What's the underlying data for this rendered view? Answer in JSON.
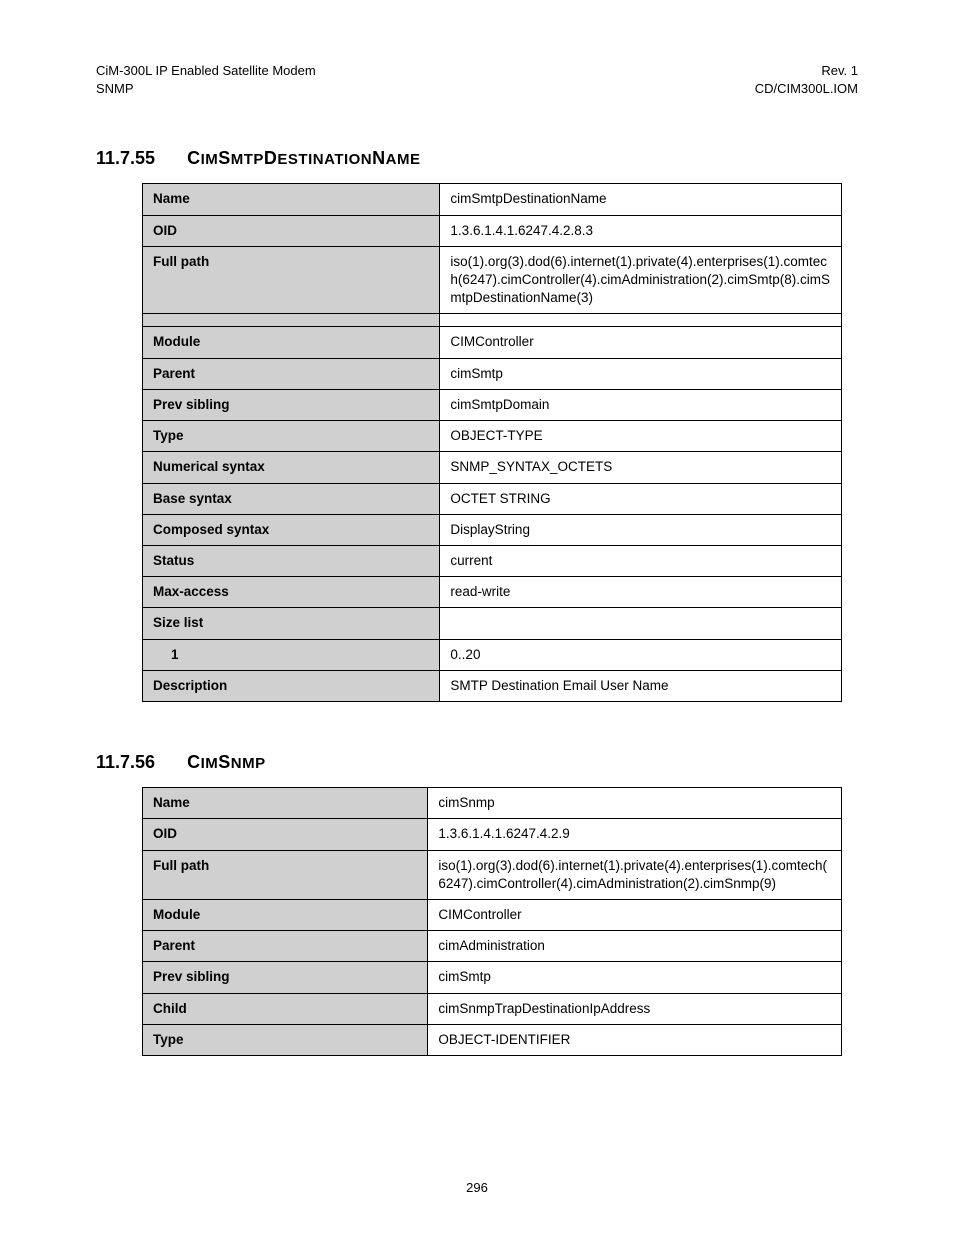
{
  "header": {
    "left_line1": "CiM-300L IP Enabled Satellite Modem",
    "left_line2": "SNMP",
    "right_line1": "Rev. 1",
    "right_line2": "CD/CIM300L.IOM"
  },
  "sections": [
    {
      "number": "11.7.55",
      "title_parts": [
        {
          "t": "C",
          "cls": "sc-upper"
        },
        {
          "t": "IM",
          "cls": "sc-lower"
        },
        {
          "t": "S",
          "cls": "sc-upper"
        },
        {
          "t": "MTP",
          "cls": "sc-lower"
        },
        {
          "t": "D",
          "cls": "sc-upper"
        },
        {
          "t": "ESTINATION",
          "cls": "sc-lower"
        },
        {
          "t": "N",
          "cls": "sc-upper"
        },
        {
          "t": "AME",
          "cls": "sc-lower"
        }
      ],
      "rows": [
        {
          "label": "Name",
          "value": "cimSmtpDestinationName"
        },
        {
          "label": "OID",
          "value": "1.3.6.1.4.1.6247.4.2.8.3"
        },
        {
          "label": "Full path",
          "value": "iso(1).org(3).dod(6).internet(1).private(4).enterprises(1).comtech(6247).cimController(4).cimAdministration(2).cimSmtp(8).cimSmtpDestinationName(3)"
        },
        {
          "label": "",
          "value": ""
        },
        {
          "label": "Module",
          "value": "CIMController"
        },
        {
          "label": "Parent",
          "value": "cimSmtp"
        },
        {
          "label": "Prev sibling",
          "value": "cimSmtpDomain"
        },
        {
          "label": "Type",
          "value": "OBJECT-TYPE"
        },
        {
          "label": "Numerical syntax",
          "value": "SNMP_SYNTAX_OCTETS"
        },
        {
          "label": "Base syntax",
          "value": "OCTET STRING"
        },
        {
          "label": "Composed syntax",
          "value": "DisplayString"
        },
        {
          "label": "Status",
          "value": "current"
        },
        {
          "label": "Max-access",
          "value": "read-write"
        },
        {
          "label": "Size list",
          "value": ""
        },
        {
          "label": "1",
          "value": "0..20",
          "indent": true
        },
        {
          "label": "Description",
          "value": "SMTP Destination Email User Name"
        }
      ]
    },
    {
      "number": "11.7.56",
      "title_parts": [
        {
          "t": "C",
          "cls": "sc-upper"
        },
        {
          "t": "IM",
          "cls": "sc-lower"
        },
        {
          "t": "S",
          "cls": "sc-upper"
        },
        {
          "t": "NMP",
          "cls": "sc-lower"
        }
      ],
      "rows": [
        {
          "label": "Name",
          "value": "cimSnmp"
        },
        {
          "label": "OID",
          "value": "1.3.6.1.4.1.6247.4.2.9"
        },
        {
          "label": "Full path",
          "value": "iso(1).org(3).dod(6).internet(1).private(4).enterprises(1).comtech(6247).cimController(4).cimAdministration(2).cimSnmp(9)"
        },
        {
          "label": "Module",
          "value": "CIMController"
        },
        {
          "label": "Parent",
          "value": "cimAdministration"
        },
        {
          "label": "Prev sibling",
          "value": "cimSmtp"
        },
        {
          "label": "Child",
          "value": "cimSnmpTrapDestinationIpAddress"
        },
        {
          "label": "Type",
          "value": "OBJECT-IDENTIFIER"
        }
      ]
    }
  ],
  "page_number": "296",
  "colors": {
    "label_bg": "#d0d0d0",
    "border": "#000000",
    "text": "#000000",
    "background": "#ffffff"
  },
  "typography": {
    "body_fontsize": 13.5,
    "heading_fontsize": 18,
    "header_fontsize": 13
  }
}
